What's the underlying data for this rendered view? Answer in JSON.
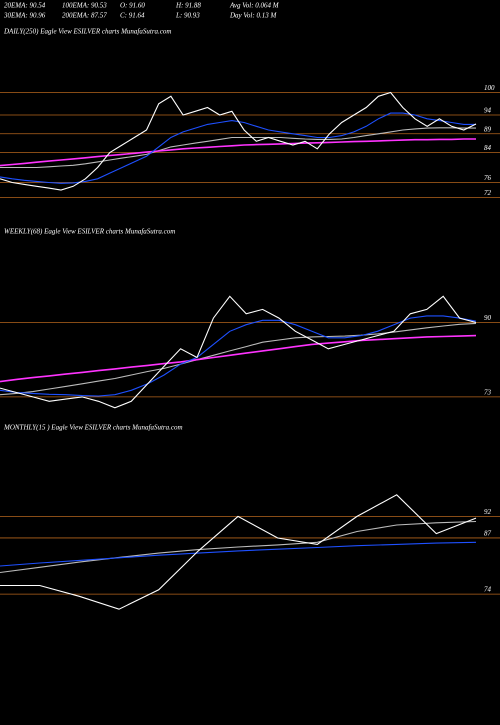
{
  "header": {
    "rows": [
      [
        "20EMA: 90.54",
        "100EMA: 90.53",
        "O: 91.60",
        "H: 91.88",
        "Avg Vol: 0.064  M"
      ],
      [
        "30EMA: 90.96",
        "200EMA: 87.57",
        "C: 91.64",
        "L: 90.93",
        "Day Vol: 0.13  M"
      ]
    ]
  },
  "chart_data": [
    {
      "type": "line",
      "title": "DAILY(250) Eagle  View  ESILVER charts MunafaSutra.com",
      "ylim": [
        70,
        114
      ],
      "yticks": [
        100,
        94,
        89,
        84,
        76,
        72
      ],
      "tick_color": "#b5651d",
      "series": [
        {
          "color": "#bbbbbb",
          "values": [
            80,
            80,
            80,
            80,
            80.2,
            80.4,
            80.6,
            81,
            81.5,
            82,
            82.5,
            83,
            83.5,
            84.5,
            85.5,
            86,
            86.5,
            87,
            87.5,
            88,
            88,
            88,
            88,
            88,
            87.8,
            87.6,
            87.5,
            87.5,
            87.6,
            88,
            88.5,
            89,
            89.5,
            90,
            90.3,
            90.5,
            90.6,
            90.6,
            90.5,
            90.5
          ]
        },
        {
          "color": "#ff33ff",
          "values": [
            80.5,
            80.8,
            81.1,
            81.4,
            81.7,
            82,
            82.3,
            82.6,
            82.9,
            83.2,
            83.5,
            83.8,
            84.1,
            84.4,
            84.7,
            85,
            85.2,
            85.4,
            85.6,
            85.8,
            86,
            86.1,
            86.2,
            86.3,
            86.4,
            86.5,
            86.6,
            86.7,
            86.8,
            86.9,
            87,
            87.1,
            87.2,
            87.3,
            87.4,
            87.4,
            87.5,
            87.5,
            87.6,
            87.6
          ]
        },
        {
          "color": "#1e50ff",
          "values": [
            77.5,
            77,
            76.6,
            76.3,
            76,
            75.8,
            75.9,
            76.3,
            77,
            78.5,
            80,
            81.5,
            83,
            85.5,
            88,
            89.5,
            90.5,
            91.5,
            92,
            92.5,
            92,
            91,
            90,
            89.5,
            89,
            88.5,
            88,
            88,
            88.5,
            89.5,
            91,
            93,
            94.5,
            94.5,
            94,
            93,
            92.5,
            92,
            91.5,
            91.5
          ]
        },
        {
          "color": "#ffffff",
          "values": [
            77,
            76,
            75.5,
            75,
            74.5,
            74,
            75,
            77,
            80,
            84,
            86,
            88,
            90,
            97,
            99,
            94,
            95,
            96,
            94,
            95,
            90,
            87,
            88,
            87,
            86,
            87,
            85,
            89,
            92,
            94,
            96,
            99,
            100,
            96,
            93,
            91,
            93,
            91,
            90,
            91.6
          ]
        }
      ]
    },
    {
      "type": "line",
      "title": "WEEKLY(68) Eagle  View  ESILVER charts MunafaSutra.com",
      "ylim": [
        70,
        110
      ],
      "yticks": [
        90,
        73
      ],
      "tick_color": "#b5651d",
      "series": [
        {
          "color": "#bbbbbb",
          "values": [
            73.5,
            73.8,
            74.2,
            74.8,
            75.4,
            76,
            76.6,
            77.2,
            78,
            78.8,
            79.5,
            80.5,
            81.5,
            82.5,
            83.5,
            84.5,
            85.5,
            86,
            86.5,
            86.7,
            86.8,
            86.9,
            87.1,
            87.4,
            87.8,
            88.3,
            88.8,
            89.2,
            89.6,
            89.8
          ]
        },
        {
          "color": "#ff33ff",
          "values": [
            76.5,
            77,
            77.4,
            77.8,
            78.2,
            78.6,
            79,
            79.4,
            79.8,
            80.2,
            80.6,
            81,
            81.5,
            82,
            82.5,
            83,
            83.5,
            84,
            84.5,
            85,
            85.3,
            85.6,
            85.9,
            86.1,
            86.3,
            86.5,
            86.7,
            86.8,
            86.9,
            87
          ]
        },
        {
          "color": "#1e50ff",
          "values": [
            74.5,
            74,
            73.8,
            73.6,
            73.5,
            73.3,
            73.2,
            73.5,
            74.5,
            76,
            78,
            80.5,
            82,
            85,
            88,
            89.5,
            90.5,
            90.5,
            89.5,
            88,
            86.5,
            86.5,
            87,
            88,
            89.5,
            91,
            91.5,
            91.5,
            91,
            90.3
          ]
        },
        {
          "color": "#ffffff",
          "values": [
            75,
            74,
            73,
            72,
            72.5,
            73,
            72,
            70.5,
            72,
            76,
            80,
            84,
            82,
            91,
            96,
            92,
            93,
            91,
            88,
            86,
            84,
            85,
            86,
            87,
            88,
            92,
            93,
            96,
            91,
            90
          ]
        }
      ]
    },
    {
      "type": "line",
      "title": "MONTHLY(15                    ) Eagle  View  ESILVER charts MunafaSutra.com",
      "ylim": [
        46,
        112
      ],
      "yticks": [
        92,
        87,
        74
      ],
      "tick_color": "#b5651d",
      "series": [
        {
          "color": "#bbbbbb",
          "values": [
            79,
            80.2,
            81.4,
            82.5,
            83.5,
            84.3,
            84.9,
            85.4,
            86,
            88.5,
            90,
            90.5,
            90.8
          ]
        },
        {
          "color": "#1e50ff",
          "values": [
            80.5,
            81.2,
            81.8,
            82.4,
            83,
            83.5,
            84,
            84.4,
            84.8,
            85.2,
            85.5,
            85.8,
            86
          ]
        },
        {
          "color": "#ffffff",
          "values": [
            76,
            76,
            73.5,
            70.5,
            75,
            84,
            92,
            87,
            85.5,
            92,
            97,
            88,
            91.6
          ]
        }
      ]
    }
  ]
}
